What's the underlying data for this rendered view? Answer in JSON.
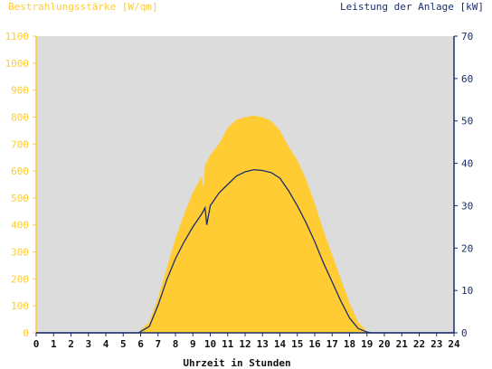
{
  "chart_data": {
    "type": "area",
    "title": "",
    "ylabel_left": "Bestrahlungsstärke [W/qm]",
    "ylabel_right": "Leistung der Anlage [kW]",
    "xlabel": "Uhrzeit in Stunden",
    "grid": false,
    "xlim": [
      0,
      24
    ],
    "ylim_left": [
      0,
      1100
    ],
    "ylim_right": [
      0,
      70
    ],
    "x_ticks": [
      "0",
      "1",
      "2",
      "3",
      "4",
      "5",
      "6",
      "7",
      "8",
      "9",
      "10",
      "11",
      "12",
      "13",
      "14",
      "15",
      "16",
      "17",
      "18",
      "19",
      "20",
      "21",
      "22",
      "23",
      "24"
    ],
    "y_ticks_left": [
      "0",
      "100",
      "200",
      "300",
      "400",
      "500",
      "600",
      "700",
      "800",
      "900",
      "1000",
      "1100"
    ],
    "y_ticks_right": [
      "0",
      "10",
      "20",
      "30",
      "40",
      "50",
      "60",
      "70"
    ],
    "colors": {
      "plot_background": "#dcdcdc",
      "irradiance_fill": "#ffcc33",
      "power_line": "#1a2e6e",
      "left_axis": "#ffcc33",
      "right_axis": "#1a2e6e"
    },
    "series": [
      {
        "axis": "left",
        "style": "area",
        "x": [
          0,
          5.9,
          6.0,
          6.5,
          7.0,
          7.5,
          8.0,
          8.5,
          9.0,
          9.5,
          9.6,
          9.7,
          10.0,
          10.5,
          11.0,
          11.5,
          12.0,
          12.5,
          13.0,
          13.5,
          14.0,
          14.5,
          15.0,
          15.5,
          16.0,
          16.5,
          17.0,
          17.5,
          18.0,
          18.5,
          19.0,
          19.2,
          24
        ],
        "values": [
          0,
          0,
          10,
          40,
          130,
          240,
          350,
          440,
          520,
          580,
          540,
          620,
          660,
          700,
          760,
          790,
          800,
          805,
          800,
          785,
          750,
          690,
          640,
          570,
          480,
          380,
          290,
          200,
          110,
          40,
          5,
          0,
          0
        ]
      },
      {
        "axis": "right",
        "style": "line",
        "x": [
          0,
          5.9,
          6.0,
          6.5,
          7.0,
          7.5,
          8.0,
          8.5,
          9.0,
          9.5,
          9.7,
          9.8,
          10.0,
          10.5,
          11.0,
          11.5,
          12.0,
          12.5,
          13.0,
          13.5,
          14.0,
          14.5,
          15.0,
          15.5,
          16.0,
          16.5,
          17.0,
          17.5,
          18.0,
          18.5,
          19.0,
          19.2,
          24
        ],
        "values": [
          0,
          0,
          0.3,
          1.5,
          6.5,
          12.5,
          17.5,
          21.5,
          25.0,
          28.0,
          29.5,
          25.5,
          30.0,
          33.0,
          35.0,
          37.0,
          38.0,
          38.5,
          38.3,
          37.8,
          36.5,
          33.5,
          30.0,
          26.0,
          21.5,
          16.5,
          12.0,
          7.5,
          3.5,
          1.0,
          0.2,
          0,
          0
        ]
      }
    ]
  }
}
